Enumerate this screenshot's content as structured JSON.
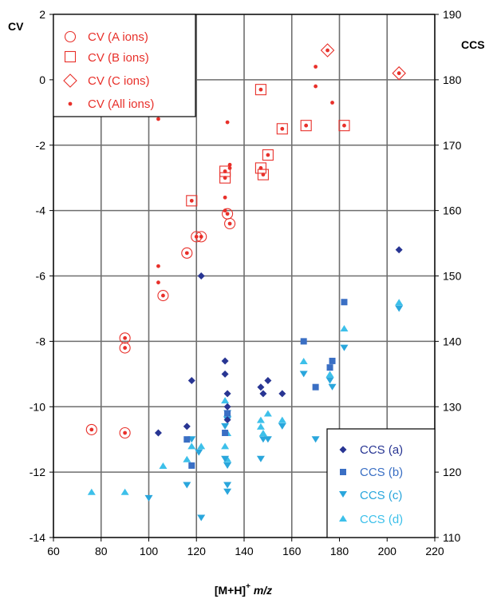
{
  "chart_data": {
    "type": "scatter",
    "xlabel": "[M+H]",
    "xlabel_sup": "+",
    "xlabel_unit": "m/z",
    "ylabel_left": "CV",
    "ylabel_right": "CCS",
    "xlim": [
      60,
      220
    ],
    "ylim_left": [
      -14,
      2
    ],
    "ylim_right": [
      110,
      190
    ],
    "x_ticks": [
      "60",
      "80",
      "100",
      "120",
      "140",
      "160",
      "180",
      "200",
      "220"
    ],
    "y_left_ticks": [
      "-14",
      "-12",
      "-10",
      "-8",
      "-6",
      "-4",
      "-2",
      "0",
      "2"
    ],
    "y_right_ticks": [
      "110",
      "120",
      "130",
      "140",
      "150",
      "160",
      "170",
      "180",
      "190"
    ],
    "grid": true,
    "legend_cv": {
      "placement": "top-left",
      "entries": [
        "CV (A ions)",
        "CV (B ions)",
        "CV (C ions)",
        "CV (All ions)"
      ]
    },
    "legend_ccs": {
      "placement": "bottom-right",
      "entries": [
        "CCS (a)",
        "CCS (b)",
        "CCS (c)",
        "CCS (d)"
      ]
    },
    "colors": {
      "cv": "#e8302a",
      "ccs_a": "#283593",
      "ccs_b": "#3a6fc4",
      "ccs_c": "#29a6dc",
      "ccs_d": "#3dc0ea",
      "grid": "#6e6e6e"
    },
    "series": [
      {
        "name": "CV (All ions)",
        "axis": "left",
        "marker": "dot",
        "points": [
          [
            76,
            -10.7
          ],
          [
            90,
            -7.9
          ],
          [
            90,
            -8.2
          ],
          [
            90,
            -10.8
          ],
          [
            104,
            -1.2
          ],
          [
            104,
            -5.7
          ],
          [
            104,
            -6.2
          ],
          [
            106,
            -6.6
          ],
          [
            116,
            -5.3
          ],
          [
            118,
            -3.7
          ],
          [
            120,
            -4.8
          ],
          [
            122,
            -4.8
          ],
          [
            132,
            -2.8
          ],
          [
            132,
            -3.0
          ],
          [
            132,
            -3.6
          ],
          [
            132,
            -4.0
          ],
          [
            133,
            -1.3
          ],
          [
            133,
            -4.1
          ],
          [
            134,
            -2.6
          ],
          [
            134,
            -2.7
          ],
          [
            134,
            -4.4
          ],
          [
            147,
            -0.3
          ],
          [
            147,
            -2.7
          ],
          [
            148,
            -2.9
          ],
          [
            150,
            -2.3
          ],
          [
            156,
            -1.5
          ],
          [
            166,
            -1.4
          ],
          [
            170,
            0.4
          ],
          [
            170,
            -0.2
          ],
          [
            175,
            0.9
          ],
          [
            177,
            -0.7
          ],
          [
            182,
            -1.4
          ],
          [
            205,
            0.2
          ]
        ]
      },
      {
        "name": "CV (A ions)",
        "axis": "left",
        "marker": "circle",
        "points": [
          [
            76,
            -10.7
          ],
          [
            90,
            -7.9
          ],
          [
            90,
            -8.2
          ],
          [
            90,
            -10.8
          ],
          [
            106,
            -6.6
          ],
          [
            116,
            -5.3
          ],
          [
            120,
            -4.8
          ],
          [
            122,
            -4.8
          ],
          [
            133,
            -4.1
          ],
          [
            134,
            -4.4
          ]
        ]
      },
      {
        "name": "CV (B ions)",
        "axis": "left",
        "marker": "square",
        "points": [
          [
            118,
            -3.7
          ],
          [
            132,
            -2.8
          ],
          [
            132,
            -3.0
          ],
          [
            147,
            -0.3
          ],
          [
            147,
            -2.7
          ],
          [
            148,
            -2.9
          ],
          [
            150,
            -2.3
          ],
          [
            156,
            -1.5
          ],
          [
            166,
            -1.4
          ],
          [
            182,
            -1.4
          ]
        ]
      },
      {
        "name": "CV (C ions)",
        "axis": "left",
        "marker": "diamond",
        "points": [
          [
            175,
            0.9
          ],
          [
            205,
            0.2
          ]
        ]
      },
      {
        "name": "CCS (a)",
        "axis": "right",
        "marker": "diamond-filled",
        "points": [
          [
            104,
            126.0
          ],
          [
            116,
            127.0
          ],
          [
            118,
            134.0
          ],
          [
            122,
            150.0
          ],
          [
            132,
            137.0
          ],
          [
            132,
            135.0
          ],
          [
            133,
            128.0
          ],
          [
            133,
            132.0
          ],
          [
            133,
            130.0
          ],
          [
            147,
            133.0
          ],
          [
            148,
            132.0
          ],
          [
            150,
            134.0
          ],
          [
            156,
            132.0
          ],
          [
            205,
            154.0
          ]
        ]
      },
      {
        "name": "CCS (b)",
        "axis": "right",
        "marker": "square-filled",
        "points": [
          [
            116,
            125.0
          ],
          [
            118,
            121.0
          ],
          [
            132,
            126.0
          ],
          [
            133,
            129.0
          ],
          [
            165,
            140.0
          ],
          [
            170,
            133.0
          ],
          [
            176,
            136.0
          ],
          [
            177,
            137.0
          ],
          [
            182,
            146.0
          ]
        ]
      },
      {
        "name": "CCS (c)",
        "axis": "right",
        "marker": "triangle-down",
        "points": [
          [
            100,
            116.0
          ],
          [
            116,
            118.0
          ],
          [
            118,
            125.0
          ],
          [
            121,
            123.0
          ],
          [
            122,
            113.0
          ],
          [
            132,
            127.0
          ],
          [
            132,
            122.0
          ],
          [
            133,
            129.0
          ],
          [
            133,
            128.0
          ],
          [
            133,
            121.0
          ],
          [
            133,
            118.0
          ],
          [
            133,
            117.0
          ],
          [
            147,
            122.0
          ],
          [
            148,
            125.0
          ],
          [
            150,
            125.0
          ],
          [
            156,
            127.0
          ],
          [
            165,
            135.0
          ],
          [
            170,
            125.0
          ],
          [
            176,
            134.0
          ],
          [
            177,
            133.0
          ],
          [
            182,
            139.0
          ],
          [
            205,
            145.0
          ]
        ]
      },
      {
        "name": "CCS (d)",
        "axis": "right",
        "marker": "triangle-up",
        "points": [
          [
            76,
            117.0
          ],
          [
            90,
            117.0
          ],
          [
            106,
            121.0
          ],
          [
            116,
            122.0
          ],
          [
            118,
            124.0
          ],
          [
            122,
            124.0
          ],
          [
            132,
            124.0
          ],
          [
            132,
            131.0
          ],
          [
            133,
            129.0
          ],
          [
            133,
            126.0
          ],
          [
            133,
            122.0
          ],
          [
            147,
            127.0
          ],
          [
            147,
            128.0
          ],
          [
            148,
            126.0
          ],
          [
            150,
            129.0
          ],
          [
            156,
            128.0
          ],
          [
            165,
            137.0
          ],
          [
            176,
            135.0
          ],
          [
            182,
            142.0
          ],
          [
            205,
            146.0
          ]
        ]
      }
    ]
  }
}
